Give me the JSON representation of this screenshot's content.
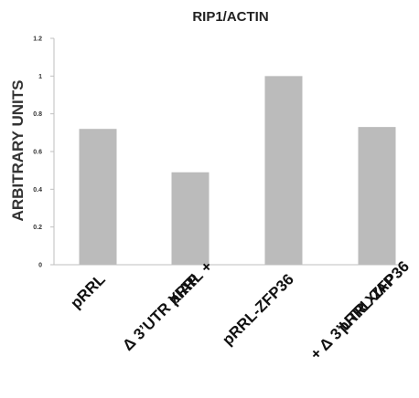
{
  "chart_data": {
    "type": "bar",
    "title": "RIP1/ACTIN",
    "xlabel": "",
    "ylabel": "ARBITRARY UNITS",
    "ylim": [
      0,
      1.2
    ],
    "yticks": [
      "0",
      "0.2",
      "0.4",
      "0.6",
      "0.8",
      "1",
      "1.2"
    ],
    "grid": false,
    "legend": "none",
    "bar_color": "#bbbbbb",
    "categories": [
      [
        "pRRL"
      ],
      [
        "pRRL +",
        "Δ 3’UTR XIAP"
      ],
      [
        "pRRL-ZFP36"
      ],
      [
        "pRRL-ZFP36",
        "+ Δ 3’UTR XIAP"
      ]
    ],
    "values": [
      0.72,
      0.49,
      1.0,
      0.73
    ]
  }
}
